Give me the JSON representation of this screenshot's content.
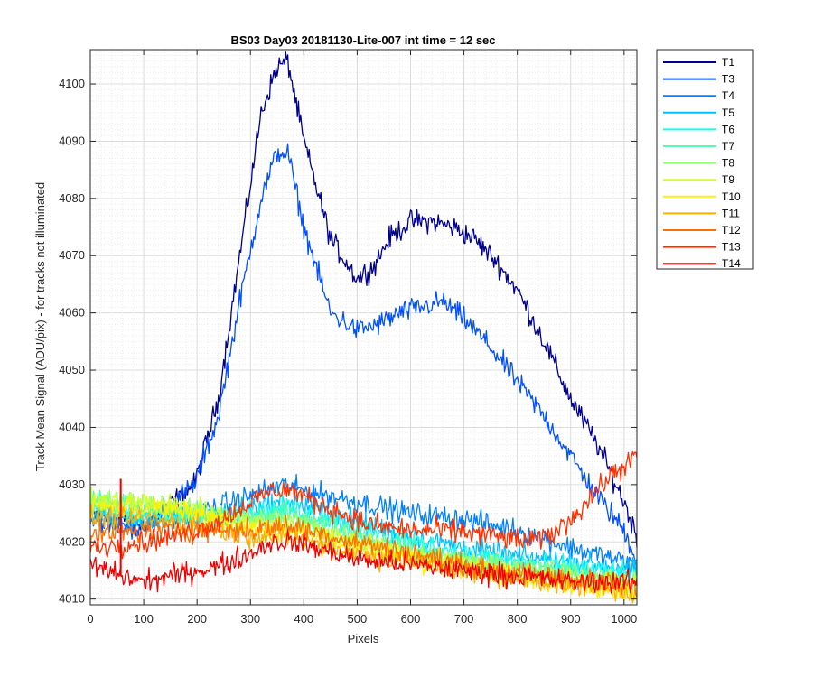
{
  "chart_data": {
    "type": "line",
    "title": "BS03 Day03 20181130-Lite-007 int time = 12 sec",
    "xlabel": "Pixels",
    "ylabel": "Track Mean Signal (ADU/pix) - for tracks not illuminated",
    "xlim": [
      0,
      1024
    ],
    "ylim": [
      4009,
      4106
    ],
    "xticks": [
      0,
      100,
      200,
      300,
      400,
      500,
      600,
      700,
      800,
      900,
      1000
    ],
    "yticks": [
      4010,
      4020,
      4030,
      4040,
      4050,
      4060,
      4070,
      4080,
      4090,
      4100
    ],
    "grid": "major and minor",
    "legend_location": "outside-top-right",
    "series": [
      {
        "name": "T1",
        "color": "#00008f",
        "x": [
          0,
          100,
          195,
          240,
          280,
          320,
          350,
          370,
          400,
          450,
          500,
          530,
          560,
          600,
          640,
          680,
          720,
          760,
          800,
          850,
          900,
          950,
          1000,
          1024
        ],
        "y": [
          4025,
          4023,
          4030,
          4045,
          4070,
          4095,
          4103,
          4104,
          4090,
          4073,
          4066,
          4068,
          4073,
          4076,
          4076,
          4075,
          4073,
          4069,
          4064,
          4055,
          4045,
          4037,
          4027,
          4021
        ]
      },
      {
        "name": "T3",
        "color": "#0050ff",
        "x": [
          0,
          100,
          195,
          240,
          280,
          320,
          350,
          370,
          400,
          450,
          500,
          540,
          580,
          620,
          660,
          700,
          750,
          800,
          850,
          900,
          950,
          1000,
          1024
        ],
        "y": [
          4024,
          4022,
          4030,
          4042,
          4062,
          4080,
          4088,
          4088,
          4075,
          4060,
          4057,
          4058,
          4060,
          4061,
          4062,
          4059,
          4054,
          4048,
          4042,
          4035,
          4028,
          4022,
          4017
        ]
      },
      {
        "name": "T4",
        "color": "#0080ff",
        "x": [
          0,
          100,
          200,
          300,
          360,
          400,
          500,
          600,
          700,
          800,
          900,
          1024
        ],
        "y": [
          4024,
          4023,
          4025,
          4028,
          4030,
          4029,
          4027,
          4025,
          4024,
          4022,
          4019,
          4016
        ]
      },
      {
        "name": "T5",
        "color": "#00c0ff",
        "x": [
          0,
          100,
          200,
          300,
          370,
          450,
          550,
          650,
          750,
          850,
          950,
          1024
        ],
        "y": [
          4025,
          4024,
          4024,
          4026,
          4027,
          4025,
          4022,
          4020,
          4018,
          4017,
          4016,
          4015
        ]
      },
      {
        "name": "T6",
        "color": "#10ffef",
        "x": [
          0,
          100,
          200,
          300,
          370,
          450,
          550,
          650,
          750,
          850,
          950,
          1024
        ],
        "y": [
          4026,
          4025,
          4024,
          4025,
          4026,
          4024,
          4021,
          4019,
          4017,
          4016,
          4015,
          4014
        ]
      },
      {
        "name": "T7",
        "color": "#50ffaf",
        "x": [
          0,
          100,
          200,
          300,
          370,
          450,
          550,
          650,
          750,
          850,
          950,
          1024
        ],
        "y": [
          4027,
          4026,
          4025,
          4024,
          4025,
          4023,
          4020,
          4018,
          4016,
          4015,
          4014,
          4013
        ]
      },
      {
        "name": "T8",
        "color": "#90ff6f",
        "x": [
          0,
          100,
          200,
          300,
          370,
          450,
          550,
          650,
          750,
          850,
          950,
          1024
        ],
        "y": [
          4027,
          4027,
          4025,
          4024,
          4024,
          4022,
          4019,
          4017,
          4016,
          4015,
          4014,
          4012
        ]
      },
      {
        "name": "T9",
        "color": "#cfff30",
        "x": [
          0,
          100,
          200,
          300,
          370,
          450,
          550,
          650,
          750,
          850,
          950,
          1024
        ],
        "y": [
          4027,
          4027,
          4026,
          4023,
          4023,
          4021,
          4019,
          4017,
          4015,
          4014,
          4013,
          4012
        ]
      },
      {
        "name": "T10",
        "color": "#ffef00",
        "x": [
          0,
          100,
          200,
          300,
          370,
          450,
          550,
          650,
          750,
          850,
          950,
          1024
        ],
        "y": [
          4026,
          4026,
          4025,
          4022,
          4022,
          4020,
          4018,
          4016,
          4015,
          4013,
          4012,
          4011
        ]
      },
      {
        "name": "T11",
        "color": "#ffb000",
        "x": [
          0,
          100,
          200,
          300,
          370,
          450,
          550,
          650,
          750,
          850,
          950,
          1024
        ],
        "y": [
          4024,
          4024,
          4023,
          4021,
          4021,
          4019,
          4017,
          4016,
          4014,
          4013,
          4012,
          4011
        ]
      },
      {
        "name": "T12",
        "color": "#ff7000",
        "x": [
          0,
          100,
          200,
          300,
          370,
          450,
          550,
          650,
          750,
          850,
          950,
          1024
        ],
        "y": [
          4021,
          4022,
          4022,
          4022,
          4023,
          4021,
          4019,
          4017,
          4015,
          4014,
          4013,
          4012
        ]
      },
      {
        "name": "T13",
        "color": "#ff3000",
        "x": [
          0,
          100,
          200,
          250,
          300,
          340,
          380,
          420,
          470,
          520,
          600,
          680,
          760,
          820,
          860,
          900,
          940,
          980,
          1024
        ],
        "y": [
          4019,
          4020,
          4022,
          4024,
          4027,
          4029,
          4029,
          4027,
          4025,
          4023,
          4022,
          4022,
          4021,
          4020,
          4021,
          4024,
          4028,
          4032,
          4035
        ]
      },
      {
        "name": "T14",
        "color": "#ef0000",
        "x": [
          0,
          60,
          100,
          150,
          200,
          250,
          300,
          340,
          380,
          420,
          500,
          600,
          700,
          800,
          900,
          1000,
          1024
        ],
        "y": [
          4016,
          4014,
          4013,
          4014,
          4015,
          4016,
          4018,
          4020,
          4020,
          4019,
          4017,
          4016,
          4015,
          4014,
          4013,
          4013,
          4013
        ]
      }
    ],
    "annotations": [
      {
        "series": "T14",
        "type": "spike",
        "x": 57,
        "y_from": 4014,
        "y_to": 4031
      }
    ]
  }
}
